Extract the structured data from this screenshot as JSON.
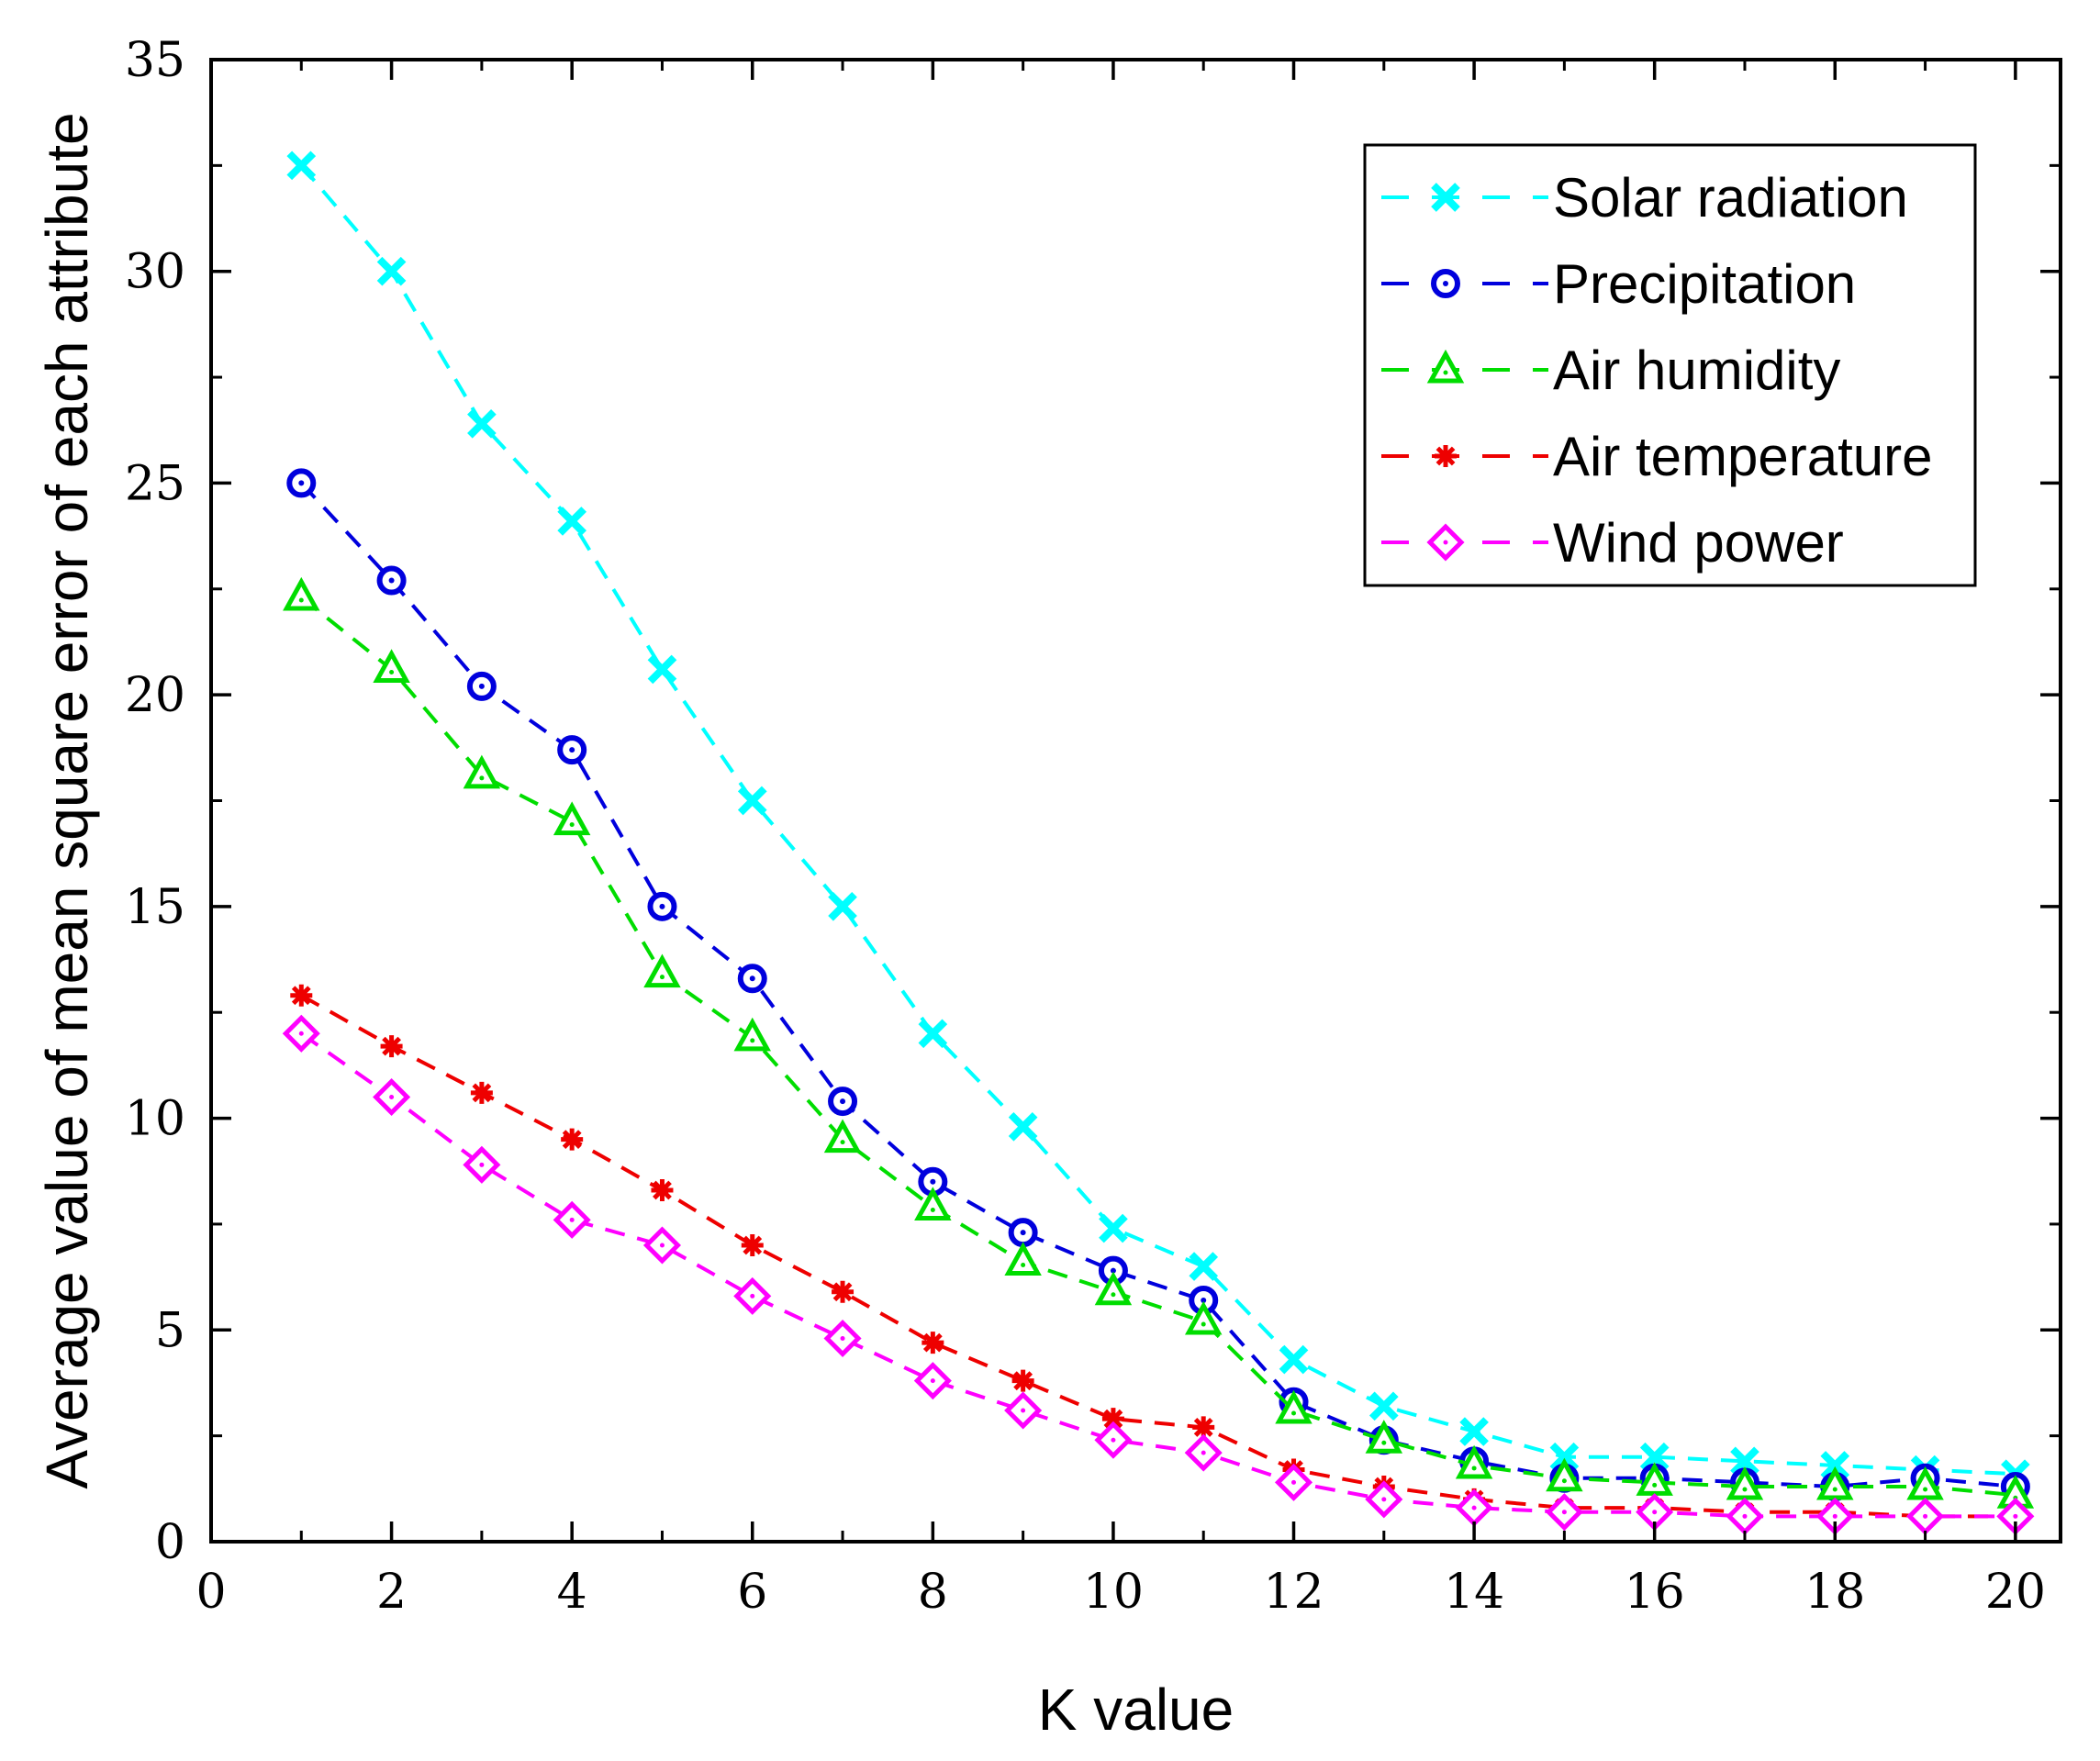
{
  "chart_data": {
    "type": "line",
    "title": "",
    "xlabel": "K value",
    "ylabel": "Average value of mean square error of each attribute",
    "xlim": [
      0,
      20.5
    ],
    "ylim": [
      0,
      35
    ],
    "xticks": [
      0,
      2,
      4,
      6,
      8,
      10,
      12,
      14,
      16,
      18,
      20
    ],
    "yticks": [
      0,
      5,
      10,
      15,
      20,
      25,
      30,
      35
    ],
    "grid": false,
    "legend_position": "top-right",
    "x": [
      1,
      2,
      3,
      4,
      5,
      6,
      7,
      8,
      9,
      10,
      11,
      12,
      13,
      14,
      15,
      16,
      17,
      18,
      19,
      20
    ],
    "series": [
      {
        "name": "Solar radiation",
        "color": "#00ffff",
        "marker": "x",
        "values": [
          32.5,
          30.0,
          26.4,
          24.1,
          20.6,
          17.5,
          15.0,
          12.0,
          9.8,
          7.4,
          6.5,
          4.3,
          3.2,
          2.6,
          2.0,
          2.0,
          1.9,
          1.8,
          1.7,
          1.6
        ]
      },
      {
        "name": "Precipitation",
        "color": "#0000dd",
        "marker": "circle",
        "values": [
          25.0,
          22.7,
          20.2,
          18.7,
          15.0,
          13.3,
          10.4,
          8.5,
          7.3,
          6.4,
          5.7,
          3.3,
          2.4,
          1.9,
          1.5,
          1.5,
          1.4,
          1.3,
          1.5,
          1.3
        ]
      },
      {
        "name": "Air humidity",
        "color": "#00dd00",
        "marker": "triangle",
        "values": [
          22.3,
          20.6,
          18.1,
          17.0,
          13.4,
          11.9,
          9.5,
          7.9,
          6.6,
          5.9,
          5.2,
          3.1,
          2.4,
          1.8,
          1.5,
          1.4,
          1.3,
          1.3,
          1.3,
          1.1
        ]
      },
      {
        "name": "Air temperature",
        "color": "#ee0000",
        "marker": "asterisk",
        "values": [
          12.9,
          11.7,
          10.6,
          9.5,
          8.3,
          7.0,
          5.9,
          4.7,
          3.8,
          2.9,
          2.7,
          1.7,
          1.3,
          1.0,
          0.8,
          0.8,
          0.7,
          0.7,
          0.6,
          0.6
        ]
      },
      {
        "name": "Wind power",
        "color": "#ff00ff",
        "marker": "diamond",
        "values": [
          12.0,
          10.5,
          8.9,
          7.6,
          7.0,
          5.8,
          4.8,
          3.8,
          3.1,
          2.4,
          2.1,
          1.4,
          1.0,
          0.8,
          0.7,
          0.7,
          0.6,
          0.6,
          0.6,
          0.6
        ]
      }
    ]
  }
}
